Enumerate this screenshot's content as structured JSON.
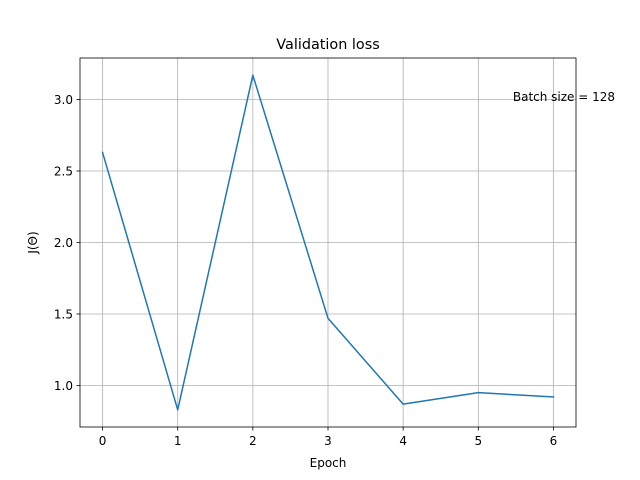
{
  "chart_data": {
    "type": "line",
    "title": "Validation loss",
    "xlabel": "Epoch",
    "ylabel": "J(Θ)",
    "x": [
      0,
      1,
      2,
      3,
      4,
      5,
      6
    ],
    "series": [
      {
        "values": [
          2.63,
          0.83,
          3.17,
          1.47,
          0.87,
          0.95,
          0.92
        ],
        "color": "#1f77b4"
      }
    ],
    "xlim": [
      -0.3,
      6.3
    ],
    "ylim": [
      0.71,
      3.29
    ],
    "xticks": [
      0,
      1,
      2,
      3,
      4,
      5,
      6
    ],
    "yticks": [
      1.0,
      1.5,
      2.0,
      2.5,
      3.0
    ],
    "xtick_labels": [
      "0",
      "1",
      "2",
      "3",
      "4",
      "5",
      "6"
    ],
    "ytick_labels": [
      "1.0",
      "1.5",
      "2.0",
      "2.5",
      "3.0"
    ],
    "grid": true,
    "annotations": [
      {
        "text": "Batch size = 128",
        "x": 5.46,
        "y": 3.02
      }
    ]
  }
}
